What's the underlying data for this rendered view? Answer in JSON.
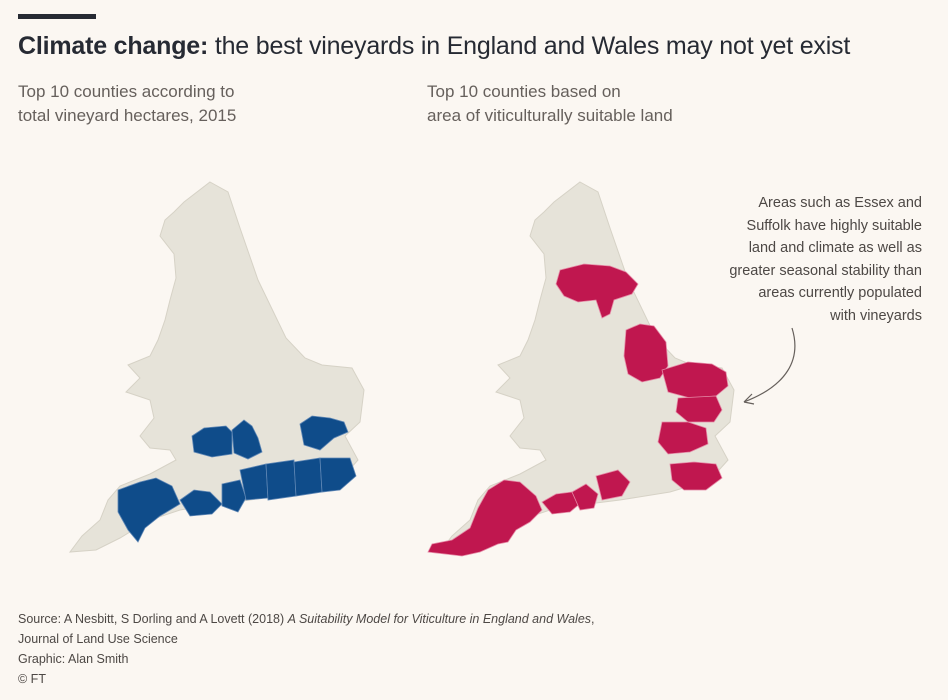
{
  "title": {
    "bold": "Climate change:",
    "rest": " the best vineyards in England and Wales may not yet exist"
  },
  "subtitle_left": {
    "line1": "Top 10 counties according to",
    "line2": "total vineyard hectares, 2015"
  },
  "subtitle_right": {
    "line1": "Top 10 counties based on",
    "line2": "area of viticulturally suitable land"
  },
  "annotation": {
    "lines": [
      "Areas such as Essex and",
      "Suffolk have highly suitable",
      "land and climate as well as",
      "greater seasonal stability than",
      "areas currently populated",
      "with vineyards"
    ]
  },
  "source": {
    "prefix": "Source: A Nesbitt, S Dorling and A Lovett (2018) ",
    "work": "A Suitability Model for Viticulture in England and Wales",
    "suffix": ",",
    "journal": "Journal of Land Use Science",
    "graphic": "Graphic: Alan Smith",
    "copyright": "© FT"
  },
  "colors": {
    "background": "#fbf7f2",
    "land": "#e6e3d9",
    "vineyard_hectares": "#0f4c8a",
    "suitable_land": "#c0174f"
  }
}
